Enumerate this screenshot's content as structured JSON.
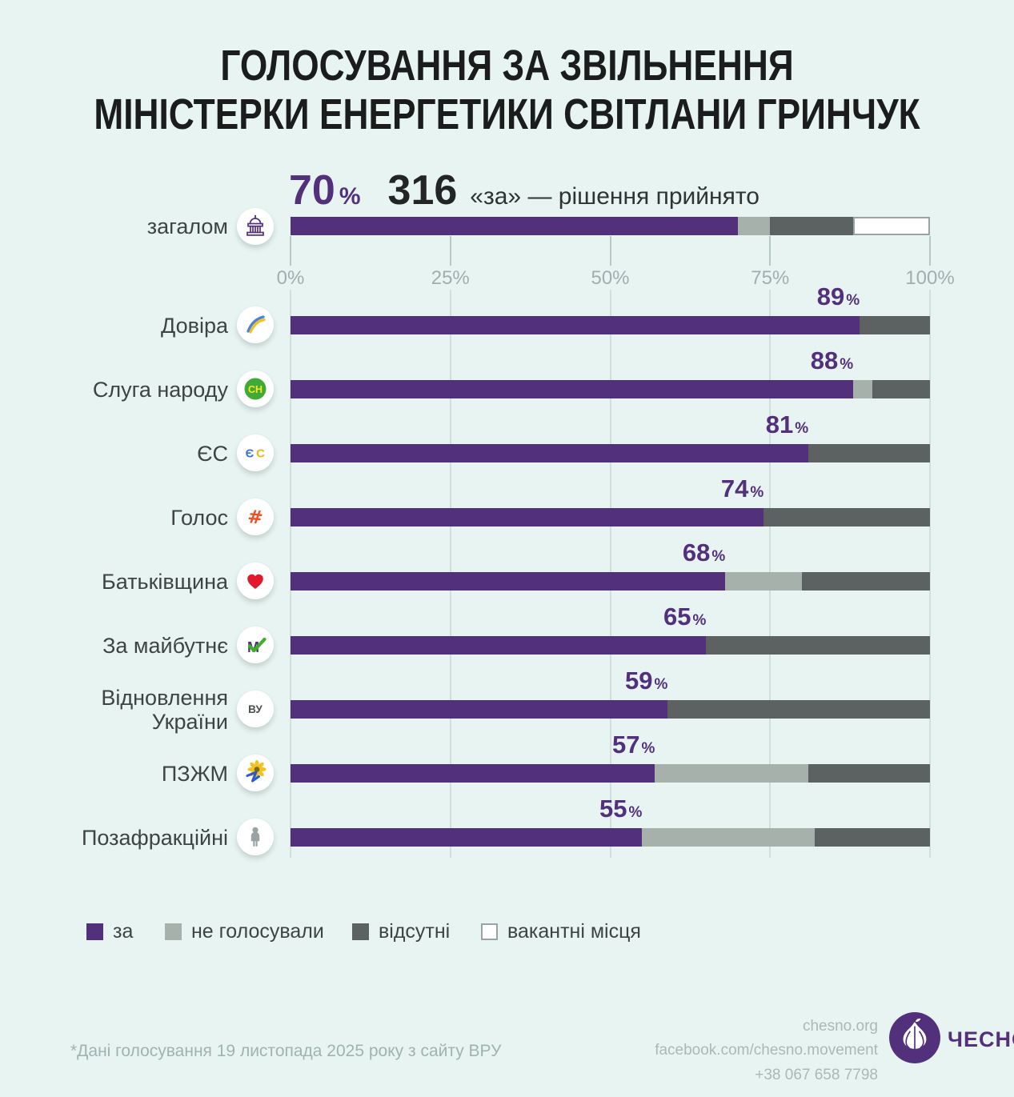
{
  "title": {
    "line1": "ГОЛОСУВАННЯ ЗА ЗВІЛЬНЕННЯ",
    "line2": "МІНІСТЕРКИ ЕНЕРГЕТИКИ СВІТЛАНИ ГРИНЧУК"
  },
  "units": {
    "percent": "%"
  },
  "summary": {
    "percent": "70",
    "votes": "316",
    "caption": "«за» — рішення прийнято"
  },
  "overall": {
    "label": "загалом",
    "icon": "parliament-icon",
    "segments": [
      {
        "type": "za",
        "value": 70
      },
      {
        "type": "ne_holosuvaly",
        "value": 5
      },
      {
        "type": "vidsutni",
        "value": 13
      },
      {
        "type": "vakantni",
        "value": 12
      }
    ]
  },
  "axis": {
    "ticks": [
      "0%",
      "25%",
      "50%",
      "75%",
      "100%"
    ],
    "tick_values": [
      0,
      25,
      50,
      75,
      100
    ]
  },
  "factions": [
    {
      "label": "Довіра",
      "icon": "rainbow-swoosh-icon",
      "pct_label": "89",
      "segments": [
        {
          "type": "za",
          "value": 89
        },
        {
          "type": "vidsutni",
          "value": 11
        }
      ]
    },
    {
      "label": "Слуга народу",
      "icon": "sn-badge-icon",
      "pct_label": "88",
      "segments": [
        {
          "type": "za",
          "value": 88
        },
        {
          "type": "ne_holosuvaly",
          "value": 3
        },
        {
          "type": "vidsutni",
          "value": 9
        }
      ]
    },
    {
      "label": "ЄС",
      "icon": "es-letters-icon",
      "pct_label": "81",
      "segments": [
        {
          "type": "za",
          "value": 81
        },
        {
          "type": "vidsutni",
          "value": 19
        }
      ]
    },
    {
      "label": "Голос",
      "icon": "holos-hash-icon",
      "pct_label": "74",
      "segments": [
        {
          "type": "za",
          "value": 74
        },
        {
          "type": "vidsutni",
          "value": 26
        }
      ]
    },
    {
      "label": "Батьківщина",
      "icon": "heart-icon",
      "pct_label": "68",
      "segments": [
        {
          "type": "za",
          "value": 68
        },
        {
          "type": "ne_holosuvaly",
          "value": 12
        },
        {
          "type": "vidsutni",
          "value": 20
        }
      ]
    },
    {
      "label": "За майбутнє",
      "icon": "m-check-icon",
      "pct_label": "65",
      "segments": [
        {
          "type": "za",
          "value": 65
        },
        {
          "type": "vidsutni",
          "value": 35
        }
      ]
    },
    {
      "label": "Відновлення України",
      "icon": "vu-letters-icon",
      "pct_label": "59",
      "segments": [
        {
          "type": "za",
          "value": 59
        },
        {
          "type": "vidsutni",
          "value": 41
        }
      ]
    },
    {
      "label": "ПЗЖМ",
      "icon": "sunflower-icon",
      "pct_label": "57",
      "segments": [
        {
          "type": "za",
          "value": 57
        },
        {
          "type": "ne_holosuvaly",
          "value": 24
        },
        {
          "type": "vidsutni",
          "value": 19
        }
      ]
    },
    {
      "label": "Позафракційні",
      "icon": "person-icon",
      "pct_label": "55",
      "segments": [
        {
          "type": "za",
          "value": 55
        },
        {
          "type": "ne_holosuvaly",
          "value": 27
        },
        {
          "type": "vidsutni",
          "value": 18
        }
      ]
    }
  ],
  "legend": [
    {
      "type": "za",
      "label": "за"
    },
    {
      "type": "ne_holosuvaly",
      "label": "не голосували"
    },
    {
      "type": "vidsutni",
      "label": "відсутні"
    },
    {
      "type": "vakantni",
      "label": "вакантні місця"
    }
  ],
  "footnote": "*Дані голосування 19 листопада 2025 року з сайту ВРУ",
  "footer": {
    "website": "chesno.org",
    "facebook": "facebook.com/chesno.movement",
    "phone": "+38 067 658 7798",
    "brand": "ЧЕСНО",
    "logo": "garlic-logo"
  },
  "colors": {
    "background": "#e8f4f2",
    "za": "#52307c",
    "ne_holosuvaly": "#a6b1ab",
    "vidsutni": "#5c6262",
    "vakantni_fill": "#ffffff",
    "vakantni_border": "#9aa3a3",
    "grid": "#cfe0dd",
    "accent_text": "#52307c"
  },
  "chart_data": {
    "type": "bar",
    "orientation": "horizontal-stacked",
    "title": "ГОЛОСУВАННЯ ЗА ЗВІЛЬНЕННЯ МІНІСТЕРКИ ЕНЕРГЕТИКИ СВІТЛАНИ ГРИНЧУК",
    "categories": [
      "загалом",
      "Довіра",
      "Слуга народу",
      "ЄС",
      "Голос",
      "Батьківщина",
      "За майбутнє",
      "Відновлення України",
      "ПЗЖМ",
      "Позафракційні"
    ],
    "series": [
      {
        "name": "за",
        "values": [
          70,
          89,
          88,
          81,
          74,
          68,
          65,
          59,
          57,
          55
        ]
      },
      {
        "name": "не голосували",
        "values": [
          5,
          0,
          3,
          0,
          0,
          12,
          0,
          0,
          24,
          27
        ]
      },
      {
        "name": "відсутні",
        "values": [
          13,
          11,
          9,
          19,
          26,
          20,
          35,
          41,
          19,
          18
        ]
      },
      {
        "name": "вакантні місця",
        "values": [
          12,
          0,
          0,
          0,
          0,
          0,
          0,
          0,
          0,
          0
        ]
      }
    ],
    "xlim": [
      0,
      100
    ],
    "x_ticks": [
      "0%",
      "25%",
      "50%",
      "75%",
      "100%"
    ],
    "bar_value_labels": [
      "70%",
      "89%",
      "88%",
      "81%",
      "74%",
      "68%",
      "65%",
      "59%",
      "57%",
      "55%"
    ],
    "annotations": {
      "headline_percent": "70%",
      "headline_votes": "316 «за» — рішення прийнято"
    },
    "legend_position": "bottom",
    "grid": true
  }
}
